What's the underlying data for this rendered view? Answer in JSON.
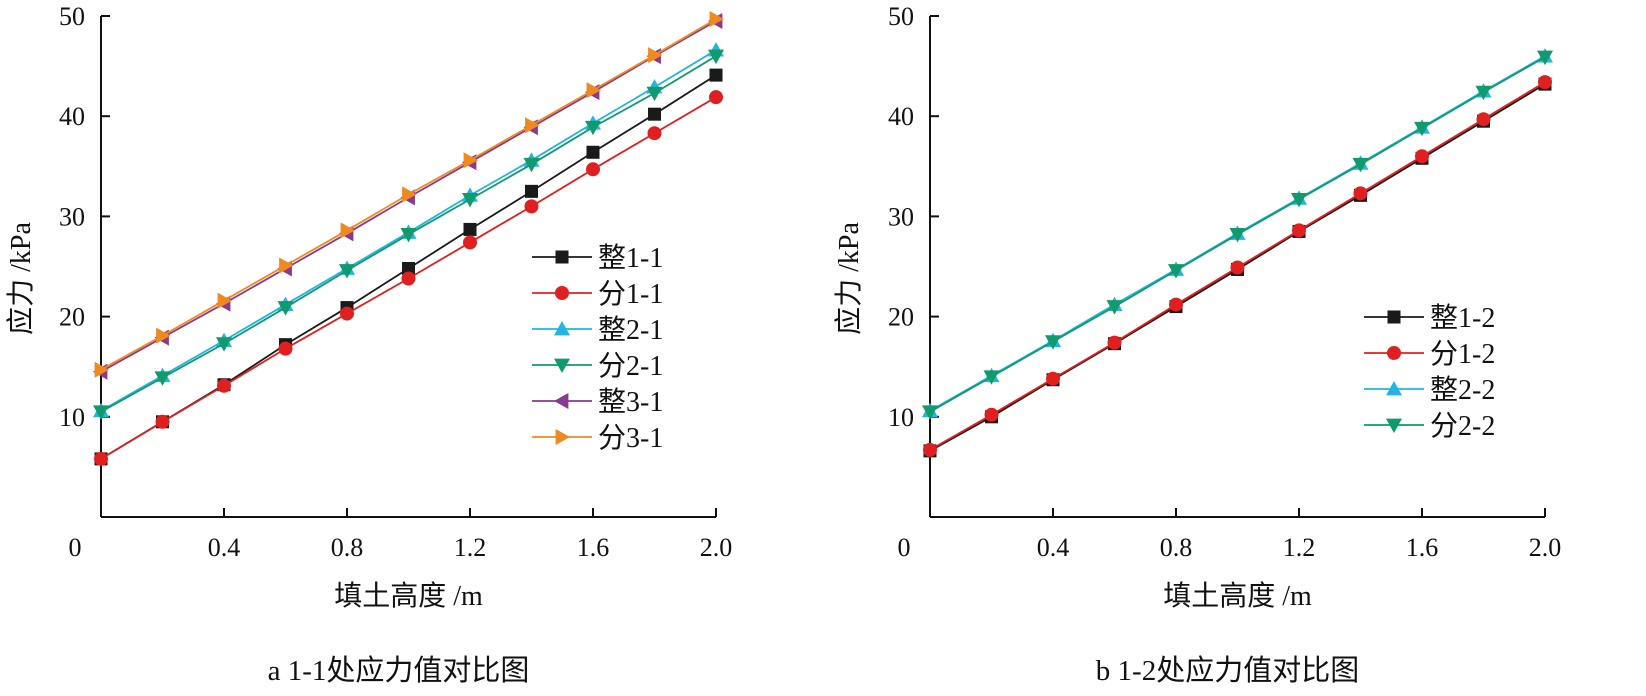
{
  "charts": [
    {
      "type": "line",
      "caption": "a 1-1处应力值对比图",
      "xlabel": "填土高度 /m",
      "ylabel": "应力 /kPa",
      "xlim": [
        0,
        2.0
      ],
      "ylim": [
        0,
        50
      ],
      "xticks": [
        0.4,
        0.8,
        1.2,
        1.6,
        2.0
      ],
      "xtick_labels": [
        "0.4",
        "0.8",
        "1.2",
        "1.6",
        "2.0"
      ],
      "yticks": [
        10,
        20,
        30,
        40,
        50
      ],
      "ytick_labels": [
        "10",
        "20",
        "30",
        "40",
        "50"
      ],
      "origin_label": "0",
      "x": [
        0.0,
        0.2,
        0.4,
        0.6,
        0.8,
        1.0,
        1.2,
        1.4,
        1.6,
        1.8,
        2.0
      ],
      "series": [
        {
          "name": "整1-1",
          "color": "#1a1a1a",
          "marker": "square",
          "values": [
            5.8,
            9.5,
            13.2,
            17.2,
            20.9,
            24.8,
            28.7,
            32.5,
            36.4,
            40.2,
            44.1
          ]
        },
        {
          "name": "分1-1",
          "color": "#e02020",
          "marker": "circle",
          "values": [
            5.8,
            9.5,
            13.1,
            16.8,
            20.3,
            23.8,
            27.4,
            31.0,
            34.7,
            38.3,
            41.9
          ]
        },
        {
          "name": "整2-1",
          "color": "#22b5e0",
          "marker": "triangle-up",
          "values": [
            10.6,
            14.1,
            17.6,
            21.2,
            24.8,
            28.4,
            32.1,
            35.6,
            39.3,
            42.9,
            46.6
          ]
        },
        {
          "name": "分2-1",
          "color": "#119a6e",
          "marker": "triangle-down",
          "values": [
            10.5,
            13.9,
            17.3,
            20.9,
            24.6,
            28.2,
            31.7,
            35.2,
            38.9,
            42.3,
            46.0
          ]
        },
        {
          "name": "整3-1",
          "color": "#8a3a8e",
          "marker": "triangle-left",
          "values": [
            14.5,
            17.9,
            21.3,
            24.8,
            28.3,
            31.9,
            35.4,
            38.9,
            42.4,
            46.0,
            49.5
          ]
        },
        {
          "name": "分3-1",
          "color": "#f08a20",
          "marker": "triangle-right",
          "values": [
            14.7,
            18.1,
            21.6,
            25.1,
            28.6,
            32.2,
            35.6,
            39.1,
            42.6,
            46.1,
            49.7
          ]
        }
      ]
    },
    {
      "type": "line",
      "caption": "b 1-2处应力值对比图",
      "xlabel": "填土高度 /m",
      "ylabel": "应力 /kPa",
      "xlim": [
        0,
        2.0
      ],
      "ylim": [
        0,
        50
      ],
      "xticks": [
        0.4,
        0.8,
        1.2,
        1.6,
        2.0
      ],
      "xtick_labels": [
        "0.4",
        "0.8",
        "1.2",
        "1.6",
        "2.0"
      ],
      "yticks": [
        10,
        20,
        30,
        40,
        50
      ],
      "ytick_labels": [
        "10",
        "20",
        "30",
        "40",
        "50"
      ],
      "origin_label": "0",
      "x": [
        0.0,
        0.2,
        0.4,
        0.6,
        0.8,
        1.0,
        1.2,
        1.4,
        1.6,
        1.8,
        2.0
      ],
      "series": [
        {
          "name": "整1-2",
          "color": "#1a1a1a",
          "marker": "square",
          "values": [
            6.6,
            10.0,
            13.7,
            17.3,
            21.0,
            24.7,
            28.5,
            32.1,
            35.8,
            39.5,
            43.2
          ]
        },
        {
          "name": "分1-2",
          "color": "#e02020",
          "marker": "circle",
          "values": [
            6.7,
            10.2,
            13.8,
            17.4,
            21.2,
            24.9,
            28.6,
            32.3,
            36.0,
            39.7,
            43.4
          ]
        },
        {
          "name": "整2-2",
          "color": "#22b5e0",
          "marker": "triangle-up",
          "values": [
            10.6,
            14.1,
            17.6,
            21.2,
            24.7,
            28.3,
            31.8,
            35.3,
            38.9,
            42.5,
            46.0
          ]
        },
        {
          "name": "分2-2",
          "color": "#119a6e",
          "marker": "triangle-down",
          "values": [
            10.5,
            14.0,
            17.5,
            21.0,
            24.6,
            28.2,
            31.7,
            35.2,
            38.8,
            42.4,
            45.9
          ]
        }
      ]
    }
  ]
}
